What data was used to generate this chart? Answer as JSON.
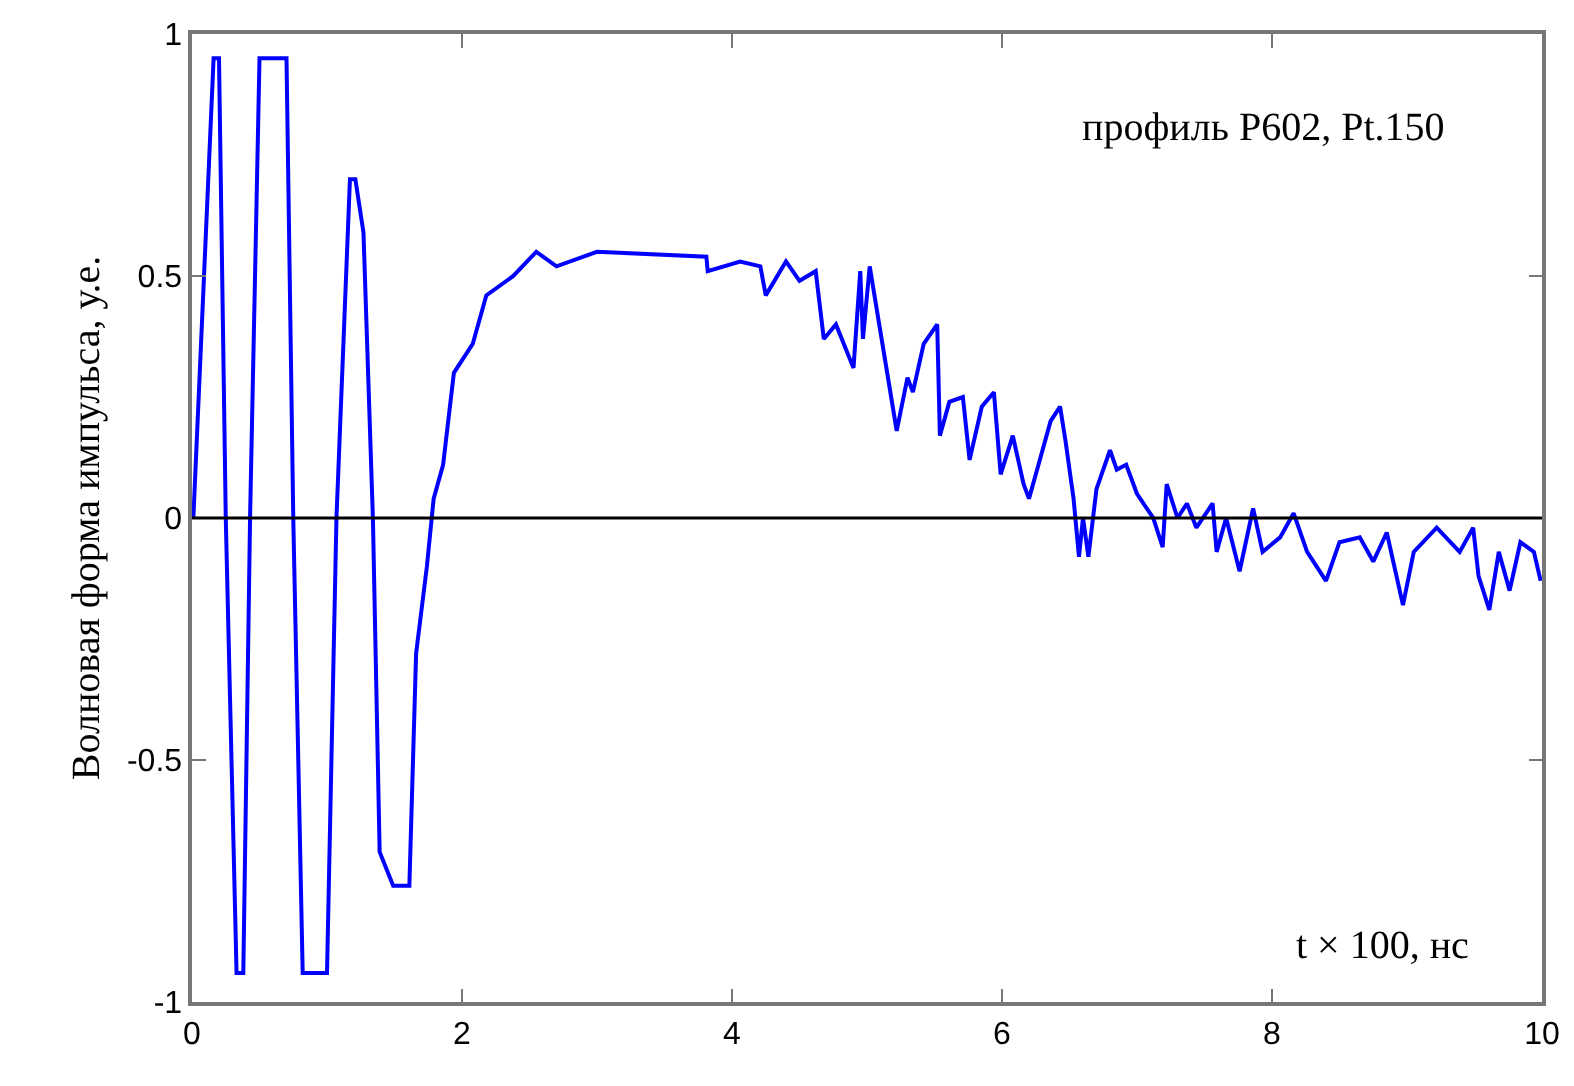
{
  "chart_data": {
    "type": "line",
    "xlabel": "t × 100, нс",
    "ylabel": "Волновая форма импульса, у.е.",
    "annotations": [
      "профиль P602, Pt.150"
    ],
    "xlim": [
      0,
      10
    ],
    "xticks": [
      0,
      2,
      4,
      6,
      8,
      10
    ],
    "ylim": [
      -1,
      1
    ],
    "yticks": [
      -1,
      -0.5,
      0,
      0.5,
      1
    ],
    "grid": false,
    "marker": "none",
    "line_style": "solid",
    "ref_lines": [
      {
        "axis": "y",
        "value": 0,
        "label": null,
        "color": "#000000"
      }
    ],
    "series": [
      {
        "color": "#0000ff",
        "x": [
          0.01,
          0.16,
          0.2,
          0.25,
          0.33,
          0.38,
          0.43,
          0.5,
          0.7,
          0.75,
          0.82,
          1.0,
          1.07,
          1.17,
          1.21,
          1.27,
          1.34,
          1.39,
          1.49,
          1.61,
          1.66,
          1.74,
          1.79,
          1.86,
          1.94,
          2.08,
          2.18,
          2.38,
          2.55,
          2.7,
          3.0,
          3.81,
          3.82,
          4.06,
          4.21,
          4.25,
          4.4,
          4.5,
          4.62,
          4.68,
          4.77,
          4.9,
          4.95,
          4.97,
          5.02,
          5.12,
          5.22,
          5.3,
          5.34,
          5.42,
          5.52,
          5.54,
          5.61,
          5.71,
          5.76,
          5.85,
          5.94,
          5.99,
          6.08,
          6.16,
          6.2,
          6.28,
          6.36,
          6.43,
          6.47,
          6.53,
          6.57,
          6.6,
          6.64,
          6.7,
          6.8,
          6.85,
          6.92,
          7.0,
          7.12,
          7.19,
          7.22,
          7.3,
          7.37,
          7.44,
          7.56,
          7.59,
          7.66,
          7.76,
          7.86,
          7.93,
          8.06,
          8.16,
          8.26,
          8.4,
          8.5,
          8.65,
          8.75,
          8.85,
          8.97,
          9.05,
          9.22,
          9.39,
          9.49,
          9.53,
          9.61,
          9.68,
          9.76,
          9.84,
          9.94,
          9.99
        ],
        "values": [
          0,
          0.95,
          0.95,
          0,
          -0.94,
          -0.94,
          0,
          0.95,
          0.95,
          0,
          -0.94,
          -0.94,
          0,
          0.7,
          0.7,
          0.59,
          0,
          -0.69,
          -0.76,
          -0.76,
          -0.28,
          -0.1,
          0.04,
          0.11,
          0.3,
          0.36,
          0.46,
          0.5,
          0.55,
          0.52,
          0.55,
          0.54,
          0.51,
          0.53,
          0.52,
          0.46,
          0.53,
          0.49,
          0.51,
          0.37,
          0.4,
          0.31,
          0.51,
          0.37,
          0.52,
          0.35,
          0.18,
          0.29,
          0.26,
          0.36,
          0.4,
          0.17,
          0.24,
          0.25,
          0.12,
          0.23,
          0.26,
          0.09,
          0.17,
          0.07,
          0.04,
          0.12,
          0.2,
          0.23,
          0.16,
          0.04,
          -0.08,
          0,
          -0.08,
          0.06,
          0.14,
          0.1,
          0.11,
          0.05,
          0,
          -0.06,
          0.07,
          0,
          0.03,
          -0.02,
          0.03,
          -0.07,
          0,
          -0.11,
          0.02,
          -0.07,
          -0.04,
          0.01,
          -0.07,
          -0.13,
          -0.05,
          -0.04,
          -0.09,
          -0.03,
          -0.18,
          -0.07,
          -0.02,
          -0.07,
          -0.02,
          -0.12,
          -0.19,
          -0.07,
          -0.15,
          -0.05,
          -0.07,
          -0.13
        ]
      }
    ]
  }
}
